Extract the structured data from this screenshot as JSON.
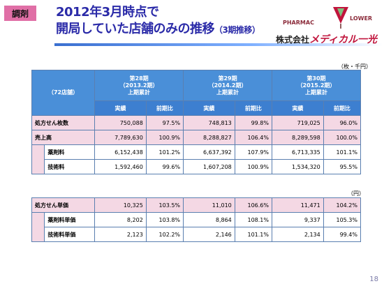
{
  "tag": "調剤",
  "title": {
    "line1": "2012年3月時点で",
    "line2": "開局していた店舗のみの推移",
    "line2_sub": "（3期推移）"
  },
  "logo": {
    "pharmac": "PHARMAC",
    "lower": "LOWER",
    "company_prefix": "株式会社",
    "company_brand": "メディカル一光"
  },
  "colors": {
    "header_blue": "#4a8fd8",
    "row_shade": "#f4d8e4",
    "title_blue": "#2a2aa8",
    "tag_pink": "#e06fa6"
  },
  "table1": {
    "unit": "（枚・千円）",
    "store_label": "（72店舗）",
    "periods": [
      {
        "name": "第28期",
        "range": "（2013.2期）",
        "cum": "上期累計"
      },
      {
        "name": "第29期",
        "range": "（2014.2期）",
        "cum": "上期累計"
      },
      {
        "name": "第30期",
        "range": "（2015.2期）",
        "cum": "上期累計"
      }
    ],
    "col_actual": "実績",
    "col_yoy": "前期比",
    "rows": [
      {
        "label": "処方せん枚数",
        "values": [
          "750,088",
          "97.5%",
          "748,813",
          "99.8%",
          "719,025",
          "96.0%"
        ]
      },
      {
        "label": "売上高",
        "values": [
          "7,789,630",
          "100.9%",
          "8,288,827",
          "106.4%",
          "8,289,598",
          "100.0%"
        ]
      },
      {
        "label": "薬剤料",
        "values": [
          "6,152,438",
          "101.2%",
          "6,637,392",
          "107.9%",
          "6,713,335",
          "101.1%"
        ]
      },
      {
        "label": "技術料",
        "values": [
          "1,592,460",
          "99.6%",
          "1,607,208",
          "100.9%",
          "1,534,320",
          "95.5%"
        ]
      }
    ]
  },
  "table2": {
    "unit": "（円）",
    "rows": [
      {
        "label": "処方せん単価",
        "values": [
          "10,325",
          "103.5%",
          "11,010",
          "106.6%",
          "11,471",
          "104.2%"
        ]
      },
      {
        "label": "薬剤料単価",
        "values": [
          "8,202",
          "103.8%",
          "8,864",
          "108.1%",
          "9,337",
          "105.3%"
        ]
      },
      {
        "label": "技術料単価",
        "values": [
          "2,123",
          "102.2%",
          "2,146",
          "101.1%",
          "2,134",
          "99.4%"
        ]
      }
    ]
  },
  "page_number": "18"
}
